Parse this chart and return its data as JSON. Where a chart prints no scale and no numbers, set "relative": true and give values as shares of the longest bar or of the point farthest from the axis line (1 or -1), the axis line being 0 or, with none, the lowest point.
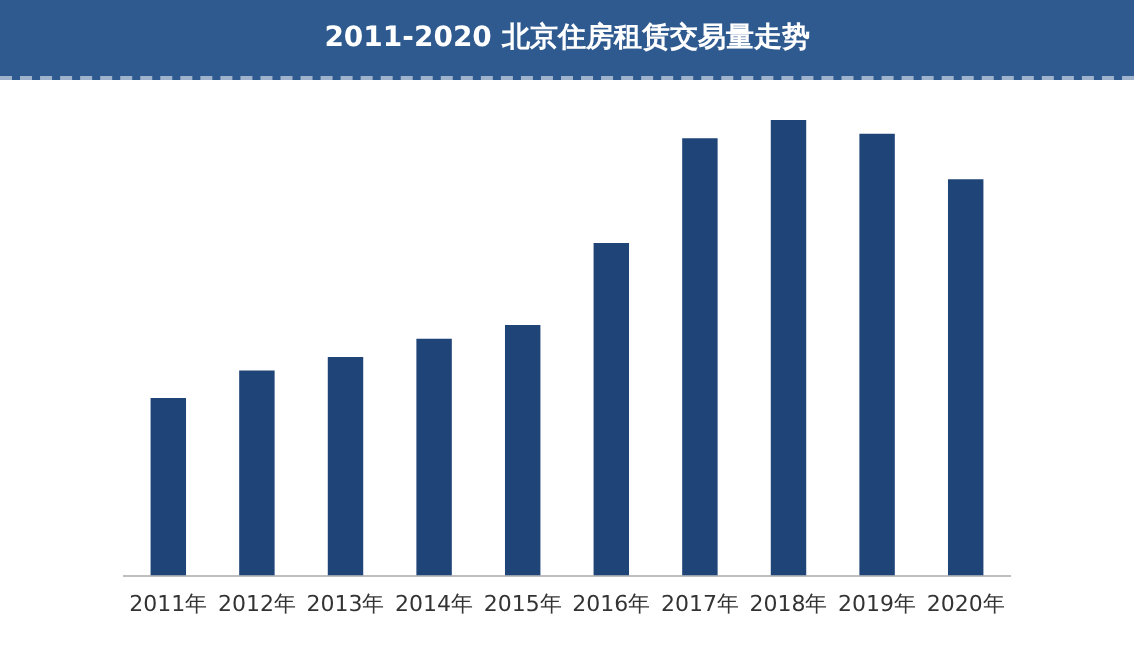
{
  "chart_data": {
    "type": "bar",
    "title": "2011-2020 北京住房租赁交易量走势",
    "categories": [
      "2011年",
      "2012年",
      "2013年",
      "2014年",
      "2015年",
      "2016年",
      "2017年",
      "2018年",
      "2019年",
      "2020年"
    ],
    "values": [
      0.39,
      0.45,
      0.48,
      0.52,
      0.55,
      0.73,
      0.96,
      1,
      0.97,
      0.87
    ],
    "color": "#1f4477",
    "relative": true,
    "grid": false,
    "legend": false
  }
}
